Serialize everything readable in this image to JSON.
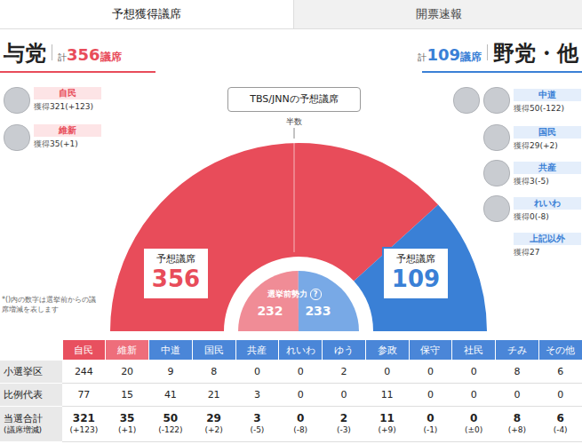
{
  "tabs": [
    "予想獲得議席",
    "開票速報"
  ],
  "ruling": {
    "label": "与党",
    "total_prefix": "計",
    "total": 356,
    "unit": "議席",
    "color": "#e84c5a",
    "parties": [
      {
        "name": "自民",
        "prefix": "獲得",
        "seats": 321,
        "change": "(+123)"
      },
      {
        "name": "維新",
        "prefix": "獲得",
        "seats": 35,
        "change": "(+1)"
      }
    ]
  },
  "opposition": {
    "label": "野党・他",
    "total_prefix": "計",
    "total": 109,
    "unit": "議席",
    "color": "#3a80d6",
    "parties": [
      {
        "name": "中道",
        "prefix": "獲得",
        "seats": 50,
        "change": "(-122)"
      },
      {
        "name": "国民",
        "prefix": "獲得",
        "seats": 29,
        "change": "(+2)"
      },
      {
        "name": "共産",
        "prefix": "獲得",
        "seats": 3,
        "change": "(-5)"
      },
      {
        "name": "れいわ",
        "prefix": "獲得",
        "seats": 0,
        "change": "(-8)"
      },
      {
        "name": "上記以外",
        "prefix": "獲得",
        "seats": 27
      }
    ]
  },
  "note": "*()内の数字は選挙前からの議席増減を表します",
  "chart_data": {
    "type": "pie",
    "title": "TBS/JNNの予想議席",
    "half_label": "半数",
    "value_label_title": "予想議席",
    "categories": [
      "与党",
      "野党・他"
    ],
    "values": [
      356,
      109
    ],
    "colors": [
      "#e84c5a",
      "#3a80d6"
    ],
    "data_labels": true,
    "pre_election": {
      "title": "選挙前勢力",
      "help": "?",
      "values": [
        232,
        233
      ],
      "colors": [
        "#f08c96",
        "#78a9e6"
      ]
    }
  },
  "table": {
    "columns": [
      "自民",
      "維新",
      "中道",
      "国民",
      "共産",
      "れいわ",
      "ゆう",
      "参政",
      "保守",
      "社民",
      "チみ",
      "その他"
    ],
    "colors": [
      "#e8505f",
      "#ee6e7b",
      "#4a86d8",
      "#4a86d8",
      "#4a86d8",
      "#4a86d8",
      "#4a86d8",
      "#4a86d8",
      "#4a86d8",
      "#4a86d8",
      "#4a86d8",
      "#4a86d8"
    ],
    "rows": [
      {
        "label": "小選挙区",
        "values": [
          244,
          20,
          9,
          8,
          0,
          0,
          2,
          0,
          0,
          0,
          8,
          6
        ]
      },
      {
        "label": "比例代表",
        "values": [
          77,
          15,
          41,
          21,
          3,
          0,
          0,
          11,
          0,
          0,
          0,
          0
        ]
      },
      {
        "label": "当選合計",
        "sublabel": "(議席増減)",
        "values": [
          321,
          35,
          50,
          29,
          3,
          0,
          2,
          11,
          0,
          0,
          8,
          6
        ],
        "changes": [
          "(+123)",
          "(+1)",
          "(-122)",
          "(+2)",
          "(-5)",
          "(-8)",
          "(-3)",
          "(+9)",
          "(-1)",
          "(±0)",
          "(+8)",
          "(-4)"
        ]
      }
    ]
  }
}
